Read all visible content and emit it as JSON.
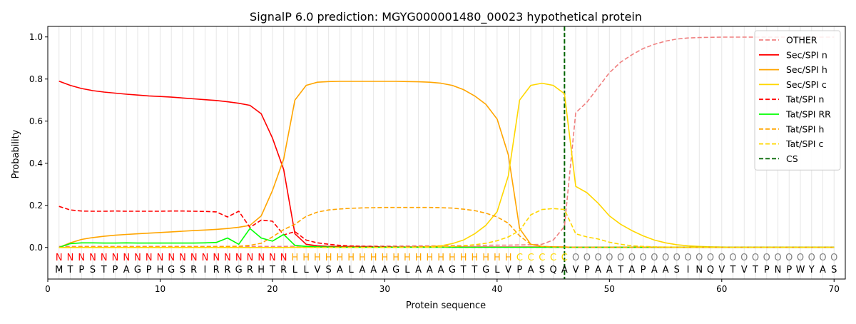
{
  "chart_data": {
    "type": "line",
    "title": "SignalP 6.0 prediction: MGYG000001480_00023 hypothetical protein",
    "xlabel": "Protein sequence",
    "ylabel": "Probability",
    "xlim": [
      0,
      71
    ],
    "ylim": [
      -0.15,
      1.05
    ],
    "x_ticks": [
      0,
      10,
      20,
      30,
      40,
      50,
      60,
      70
    ],
    "y_ticks": [
      0.0,
      0.2,
      0.4,
      0.6,
      0.8,
      1.0
    ],
    "vertical_grid": true,
    "legend_position": "top-right",
    "sequence": [
      "M",
      "T",
      "P",
      "S",
      "T",
      "P",
      "A",
      "G",
      "P",
      "H",
      "G",
      "S",
      "R",
      "I",
      "R",
      "R",
      "G",
      "R",
      "H",
      "T",
      "R",
      "L",
      "L",
      "V",
      "S",
      "A",
      "L",
      "A",
      "A",
      "A",
      "G",
      "L",
      "A",
      "A",
      "A",
      "G",
      "T",
      "T",
      "G",
      "L",
      "V",
      "P",
      "A",
      "S",
      "Q",
      "A",
      "V",
      "P",
      "A",
      "A",
      "T",
      "A",
      "P",
      "A",
      "A",
      "S",
      "I",
      "N",
      "Q",
      "V",
      "T",
      "V",
      "T",
      "P",
      "N",
      "P",
      "W",
      "Y",
      "A",
      "S"
    ],
    "region_labels": [
      "N",
      "N",
      "N",
      "N",
      "N",
      "N",
      "N",
      "N",
      "N",
      "N",
      "N",
      "N",
      "N",
      "N",
      "N",
      "N",
      "N",
      "N",
      "N",
      "N",
      "N",
      "H",
      "H",
      "H",
      "H",
      "H",
      "H",
      "H",
      "H",
      "H",
      "H",
      "H",
      "H",
      "H",
      "H",
      "H",
      "H",
      "H",
      "H",
      "H",
      "H",
      "C",
      "C",
      "C",
      "C",
      "C",
      "O",
      "O",
      "O",
      "O",
      "O",
      "O",
      "O",
      "O",
      "O",
      "O",
      "O",
      "O",
      "O",
      "O",
      "O",
      "O",
      "O",
      "O",
      "O",
      "O",
      "O",
      "O",
      "O",
      "O"
    ],
    "region_colors": {
      "N": "#ff0000",
      "H": "#ffa500",
      "C": "#ffd700",
      "O": "#808080"
    },
    "cs_position": 46,
    "cs_label": "CS",
    "cs_color": "#006400",
    "series": [
      {
        "name": "OTHER",
        "color": "#f08080",
        "dash": "dash",
        "values": [
          0.005,
          0.005,
          0.005,
          0.005,
          0.005,
          0.005,
          0.005,
          0.005,
          0.005,
          0.005,
          0.005,
          0.005,
          0.005,
          0.005,
          0.005,
          0.005,
          0.005,
          0.005,
          0.005,
          0.005,
          0.005,
          0.006,
          0.006,
          0.006,
          0.006,
          0.006,
          0.006,
          0.007,
          0.007,
          0.007,
          0.007,
          0.007,
          0.008,
          0.008,
          0.008,
          0.009,
          0.009,
          0.01,
          0.01,
          0.011,
          0.011,
          0.012,
          0.013,
          0.015,
          0.035,
          0.1,
          0.64,
          0.69,
          0.76,
          0.83,
          0.88,
          0.915,
          0.945,
          0.965,
          0.98,
          0.99,
          0.995,
          0.997,
          0.998,
          0.999,
          0.999,
          0.999,
          0.999,
          0.999,
          0.999,
          0.999,
          0.999,
          0.999,
          0.999,
          0.999
        ]
      },
      {
        "name": "Sec/SPI n",
        "color": "#ff0000",
        "dash": "solid",
        "values": [
          0.79,
          0.77,
          0.755,
          0.745,
          0.738,
          0.733,
          0.728,
          0.724,
          0.72,
          0.717,
          0.714,
          0.71,
          0.706,
          0.702,
          0.698,
          0.692,
          0.685,
          0.675,
          0.635,
          0.52,
          0.37,
          0.065,
          0.015,
          0.008,
          0.005,
          0.004,
          0.003,
          0.003,
          0.002,
          0.002,
          0.002,
          0.002,
          0.002,
          0.002,
          0.002,
          0.002,
          0.002,
          0.002,
          0.002,
          0.002,
          0.002,
          0.002,
          0.002,
          0.002,
          0.002,
          0.002,
          0.001,
          0.001,
          0.001,
          0.001,
          0.001,
          0.001,
          0.001,
          0.001,
          0.001,
          0.001,
          0.001,
          0.001,
          0.001,
          0.001,
          0.001,
          0.001,
          0.001,
          0.001,
          0.001,
          0.001,
          0.001,
          0.001,
          0.001,
          0.001
        ]
      },
      {
        "name": "Sec/SPI h",
        "color": "#ffa500",
        "dash": "solid",
        "values": [
          0.0,
          0.022,
          0.038,
          0.047,
          0.053,
          0.058,
          0.062,
          0.065,
          0.068,
          0.071,
          0.074,
          0.077,
          0.08,
          0.083,
          0.086,
          0.09,
          0.096,
          0.105,
          0.15,
          0.27,
          0.42,
          0.7,
          0.77,
          0.785,
          0.788,
          0.789,
          0.789,
          0.789,
          0.789,
          0.789,
          0.789,
          0.788,
          0.787,
          0.785,
          0.78,
          0.77,
          0.75,
          0.72,
          0.68,
          0.61,
          0.44,
          0.09,
          0.015,
          0.005,
          0.003,
          0.002,
          0.001,
          0.001,
          0.001,
          0.001,
          0.001,
          0.001,
          0.001,
          0.001,
          0.001,
          0.001,
          0.001,
          0.001,
          0.001,
          0.001,
          0.001,
          0.001,
          0.001,
          0.001,
          0.001,
          0.001,
          0.001,
          0.001,
          0.001,
          0.001
        ]
      },
      {
        "name": "Sec/SPI c",
        "color": "#ffd700",
        "dash": "solid",
        "values": [
          0.0,
          0.0,
          0.0,
          0.0,
          0.0,
          0.0,
          0.0,
          0.0,
          0.0,
          0.0,
          0.0,
          0.0,
          0.0,
          0.0,
          0.0,
          0.0,
          0.0,
          0.0,
          0.0,
          0.0,
          0.0,
          0.001,
          0.001,
          0.001,
          0.001,
          0.001,
          0.001,
          0.001,
          0.001,
          0.002,
          0.002,
          0.002,
          0.003,
          0.004,
          0.008,
          0.018,
          0.035,
          0.065,
          0.105,
          0.17,
          0.34,
          0.7,
          0.77,
          0.78,
          0.77,
          0.73,
          0.29,
          0.26,
          0.21,
          0.15,
          0.11,
          0.08,
          0.055,
          0.035,
          0.022,
          0.013,
          0.008,
          0.005,
          0.003,
          0.002,
          0.001,
          0.001,
          0.001,
          0.001,
          0.001,
          0.001,
          0.001,
          0.001,
          0.001,
          0.001
        ]
      },
      {
        "name": "Tat/SPI n",
        "color": "#ff0000",
        "dash": "dash",
        "values": [
          0.195,
          0.178,
          0.173,
          0.172,
          0.172,
          0.173,
          0.172,
          0.172,
          0.172,
          0.172,
          0.173,
          0.173,
          0.172,
          0.171,
          0.169,
          0.145,
          0.172,
          0.095,
          0.13,
          0.125,
          0.06,
          0.075,
          0.035,
          0.022,
          0.015,
          0.01,
          0.007,
          0.005,
          0.004,
          0.003,
          0.002,
          0.002,
          0.002,
          0.002,
          0.002,
          0.001,
          0.001,
          0.001,
          0.001,
          0.001,
          0.001,
          0.001,
          0.001,
          0.001,
          0.001,
          0.001,
          0.001,
          0.001,
          0.001,
          0.001,
          0.001,
          0.001,
          0.001,
          0.001,
          0.001,
          0.001,
          0.001,
          0.001,
          0.001,
          0.001,
          0.001,
          0.001,
          0.001,
          0.001,
          0.001,
          0.001,
          0.001,
          0.001,
          0.001,
          0.001
        ]
      },
      {
        "name": "Tat/SPI RR",
        "color": "#00ff00",
        "dash": "solid",
        "values": [
          0.0,
          0.018,
          0.022,
          0.022,
          0.021,
          0.021,
          0.022,
          0.021,
          0.021,
          0.021,
          0.021,
          0.021,
          0.021,
          0.022,
          0.024,
          0.045,
          0.015,
          0.09,
          0.045,
          0.03,
          0.062,
          0.01,
          0.005,
          0.003,
          0.002,
          0.001,
          0.001,
          0.001,
          0.001,
          0.001,
          0.001,
          0.001,
          0.001,
          0.001,
          0.001,
          0.001,
          0.001,
          0.001,
          0.001,
          0.001,
          0.001,
          0.001,
          0.001,
          0.001,
          0.001,
          0.001,
          0.001,
          0.001,
          0.001,
          0.001,
          0.001,
          0.001,
          0.001,
          0.001,
          0.001,
          0.001,
          0.001,
          0.001,
          0.001,
          0.001,
          0.001,
          0.001,
          0.001,
          0.001,
          0.001,
          0.001,
          0.001,
          0.001,
          0.001,
          0.001
        ]
      },
      {
        "name": "Tat/SPI h",
        "color": "#ffa500",
        "dash": "dash",
        "values": [
          0.0,
          0.002,
          0.003,
          0.003,
          0.003,
          0.003,
          0.003,
          0.003,
          0.003,
          0.003,
          0.003,
          0.003,
          0.003,
          0.003,
          0.004,
          0.005,
          0.006,
          0.01,
          0.02,
          0.05,
          0.085,
          0.11,
          0.148,
          0.168,
          0.178,
          0.183,
          0.186,
          0.188,
          0.189,
          0.19,
          0.19,
          0.19,
          0.19,
          0.19,
          0.189,
          0.187,
          0.182,
          0.175,
          0.163,
          0.145,
          0.115,
          0.055,
          0.015,
          0.005,
          0.003,
          0.002,
          0.001,
          0.001,
          0.001,
          0.001,
          0.001,
          0.001,
          0.001,
          0.001,
          0.001,
          0.001,
          0.001,
          0.001,
          0.001,
          0.001,
          0.001,
          0.001,
          0.001,
          0.001,
          0.001,
          0.001,
          0.001,
          0.001,
          0.001,
          0.001
        ]
      },
      {
        "name": "Tat/SPI c",
        "color": "#ffd700",
        "dash": "dash",
        "values": [
          0.0,
          0.0,
          0.0,
          0.0,
          0.0,
          0.0,
          0.0,
          0.0,
          0.0,
          0.0,
          0.0,
          0.0,
          0.0,
          0.0,
          0.0,
          0.0,
          0.0,
          0.0,
          0.0,
          0.0,
          0.0,
          0.0,
          0.0,
          0.0,
          0.0,
          0.0,
          0.0,
          0.0,
          0.0,
          0.0,
          0.0,
          0.001,
          0.001,
          0.002,
          0.003,
          0.005,
          0.008,
          0.013,
          0.02,
          0.032,
          0.05,
          0.08,
          0.155,
          0.18,
          0.185,
          0.18,
          0.065,
          0.05,
          0.04,
          0.025,
          0.015,
          0.008,
          0.005,
          0.003,
          0.002,
          0.001,
          0.001,
          0.001,
          0.001,
          0.001,
          0.001,
          0.001,
          0.001,
          0.001,
          0.001,
          0.001,
          0.001,
          0.001,
          0.001,
          0.001
        ]
      }
    ]
  }
}
